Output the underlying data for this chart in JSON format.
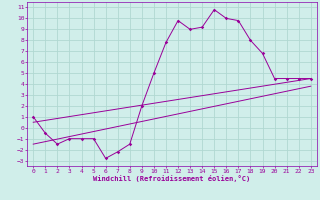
{
  "xlabel": "Windchill (Refroidissement éolien,°C)",
  "background_color": "#d0eeea",
  "grid_color": "#b0d8d2",
  "line_color": "#990099",
  "spine_color": "#8800aa",
  "xlim": [
    -0.5,
    23.5
  ],
  "ylim": [
    -3.5,
    11.5
  ],
  "xticks": [
    0,
    1,
    2,
    3,
    4,
    5,
    6,
    7,
    8,
    9,
    10,
    11,
    12,
    13,
    14,
    15,
    16,
    17,
    18,
    19,
    20,
    21,
    22,
    23
  ],
  "yticks": [
    -3,
    -2,
    -1,
    0,
    1,
    2,
    3,
    4,
    5,
    6,
    7,
    8,
    9,
    10,
    11
  ],
  "curve1_x": [
    0,
    1,
    2,
    3,
    4,
    5,
    6,
    7,
    8,
    9,
    10,
    11,
    12,
    13,
    14,
    15,
    16,
    17,
    18,
    19,
    20,
    21,
    22,
    23
  ],
  "curve1_y": [
    1.0,
    -0.5,
    -1.5,
    -1.0,
    -1.0,
    -1.0,
    -2.8,
    -2.2,
    -1.5,
    2.0,
    5.0,
    7.8,
    9.8,
    9.0,
    9.2,
    10.8,
    10.0,
    9.8,
    8.0,
    6.8,
    4.5,
    4.5,
    4.5,
    4.5
  ],
  "line1_x": [
    0,
    23
  ],
  "line1_y": [
    0.5,
    4.5
  ],
  "line2_x": [
    0,
    23
  ],
  "line2_y": [
    -1.5,
    3.8
  ],
  "tick_fontsize": 4.5,
  "label_fontsize": 5.0
}
